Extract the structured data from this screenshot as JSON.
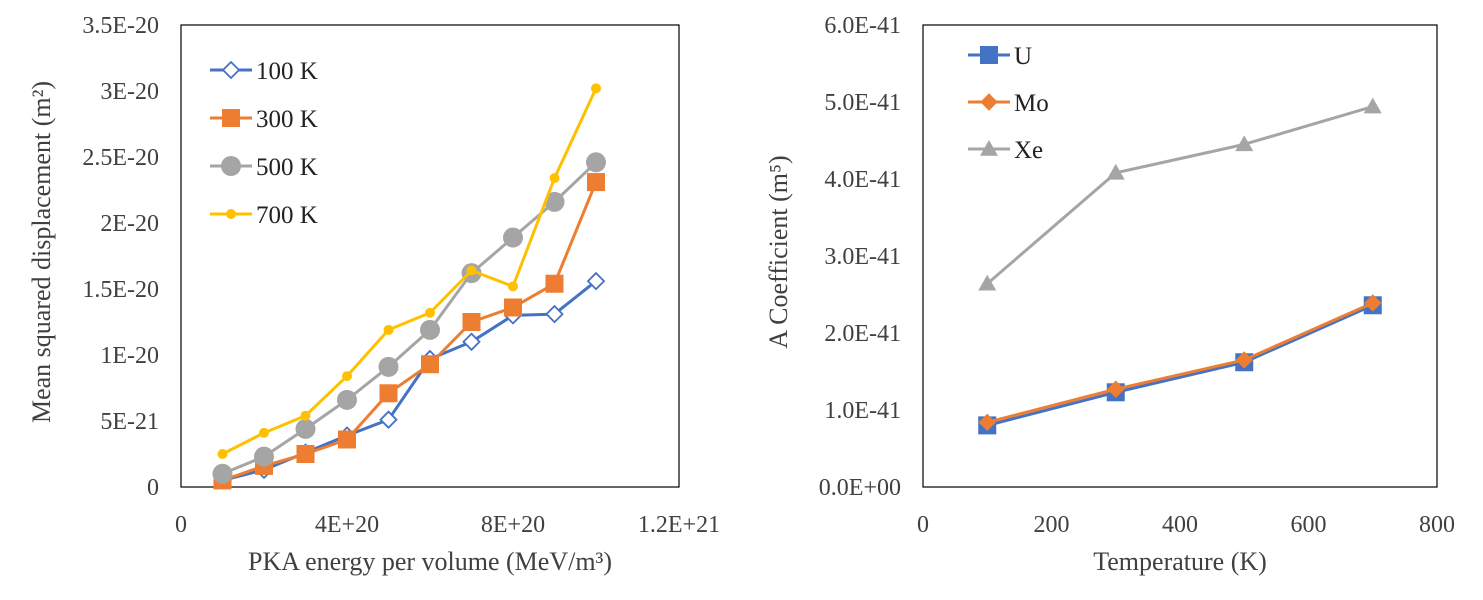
{
  "chart_data": [
    {
      "type": "line",
      "xlabel": "PKA energy per volume (MeV/m³)",
      "ylabel": "Mean squared displacement (m²)",
      "xlim": [
        0,
        1.2e+21
      ],
      "ylim": [
        0,
        3.5e-20
      ],
      "x_ticks": [
        0,
        4e+20,
        8e+20,
        1.2e+21
      ],
      "x_tick_labels": [
        "0",
        "4E+20",
        "8E+20",
        "1.2E+21"
      ],
      "y_ticks": [
        0,
        5e-21,
        1e-20,
        1.5e-20,
        2e-20,
        2.5e-20,
        3e-20,
        3.5e-20
      ],
      "y_tick_labels": [
        "0",
        "5E-21",
        "1E-20",
        "1.5E-20",
        "2E-20",
        "2.5E-20",
        "3E-20",
        "3.5E-20"
      ],
      "grid": false,
      "legend_position": "top-left",
      "x": [
        1e+20,
        2e+20,
        3e+20,
        4e+20,
        5e+20,
        6e+20,
        7e+20,
        8e+20,
        9e+20,
        1e+21
      ],
      "series": [
        {
          "name": "100 K",
          "color": "#4472C4",
          "marker": "diamond-open",
          "values": [
            5e-22,
            1.3e-21,
            2.6e-21,
            3.9e-21,
            5.1e-21,
            9.7e-21,
            1.1e-20,
            1.3e-20,
            1.31e-20,
            1.56e-20
          ]
        },
        {
          "name": "300 K",
          "color": "#ED7D31",
          "marker": "square",
          "values": [
            5e-22,
            1.6e-21,
            2.5e-21,
            3.6e-21,
            7.1e-21,
            9.3e-21,
            1.25e-20,
            1.36e-20,
            1.54e-20,
            2.31e-20
          ]
        },
        {
          "name": "500 K",
          "color": "#A5A5A5",
          "marker": "circle",
          "values": [
            1e-21,
            2.3e-21,
            4.4e-21,
            6.6e-21,
            9.1e-21,
            1.19e-20,
            1.62e-20,
            1.89e-20,
            2.16e-20,
            2.46e-20
          ]
        },
        {
          "name": "700 K",
          "color": "#FFC000",
          "marker": "dot",
          "values": [
            2.5e-21,
            4.1e-21,
            5.4e-21,
            8.4e-21,
            1.19e-20,
            1.32e-20,
            1.64e-20,
            1.52e-20,
            2.34e-20,
            3.02e-20
          ]
        }
      ]
    },
    {
      "type": "line",
      "xlabel": "Temperature (K)",
      "ylabel": "A Coefficient (m⁵)",
      "xlim": [
        0,
        800
      ],
      "ylim": [
        0,
        6e-41
      ],
      "x_ticks": [
        0,
        200,
        400,
        600,
        800
      ],
      "x_tick_labels": [
        "0",
        "200",
        "400",
        "600",
        "800"
      ],
      "y_ticks": [
        0,
        1e-41,
        2e-41,
        3e-41,
        4e-41,
        5e-41,
        6e-41
      ],
      "y_tick_labels": [
        "0.0E+00",
        "1.0E-41",
        "2.0E-41",
        "3.0E-41",
        "4.0E-41",
        "5.0E-41",
        "6.0E-41"
      ],
      "grid": false,
      "legend_position": "top-left",
      "x": [
        100,
        300,
        500,
        700
      ],
      "series": [
        {
          "name": "U",
          "color": "#4472C4",
          "marker": "square",
          "values": [
            8e-42,
            1.23e-41,
            1.62e-41,
            2.36e-41
          ]
        },
        {
          "name": "Mo",
          "color": "#ED7D31",
          "marker": "diamond",
          "values": [
            8.4e-42,
            1.27e-41,
            1.65e-41,
            2.39e-41
          ]
        },
        {
          "name": "Xe",
          "color": "#A5A5A5",
          "marker": "triangle",
          "values": [
            2.64e-41,
            4.08e-41,
            4.45e-41,
            4.94e-41
          ]
        }
      ]
    }
  ]
}
